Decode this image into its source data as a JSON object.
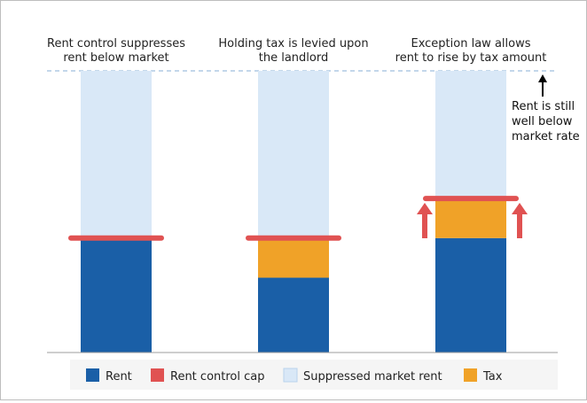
{
  "chart_data": {
    "type": "bar",
    "categories": [
      "Rent control suppresses rent below market",
      "Holding tax is levied upon the landlord",
      "Exception law allows rent to rise by tax amount"
    ],
    "column_titles": [
      [
        "Rent control suppresses",
        "rent below market"
      ],
      [
        "Holding tax is levied upon",
        "the landlord"
      ],
      [
        "Exception law allows",
        "rent to rise by tax amount"
      ]
    ],
    "series": [
      {
        "name": "Rent",
        "values": [
          128,
          85,
          130
        ]
      },
      {
        "name": "Tax",
        "values": [
          0,
          43,
          45
        ]
      },
      {
        "name": "Suppressed market rent",
        "values": [
          192,
          192,
          145
        ]
      }
    ],
    "rent_control_cap": [
      130,
      130,
      175
    ],
    "market_rent": 320,
    "ylim": [
      0,
      325
    ],
    "annotation": [
      "Rent is still",
      "well below",
      "market rate"
    ],
    "legend": [
      {
        "label": "Rent",
        "color": "#1a5fa7"
      },
      {
        "label": "Rent control cap",
        "color": "#e05252"
      },
      {
        "label": "Suppressed market rent",
        "color": "#d9e8f7"
      },
      {
        "label": "Tax",
        "color": "#f0a228"
      }
    ],
    "colors": {
      "rent": "#1a5fa7",
      "tax": "#f0a228",
      "suppressed": "#d9e8f7",
      "cap": "#e05252",
      "market_line": "#9fbfdd",
      "baseline": "#9e9e9e",
      "legend_bg": "#f5f5f5"
    }
  }
}
